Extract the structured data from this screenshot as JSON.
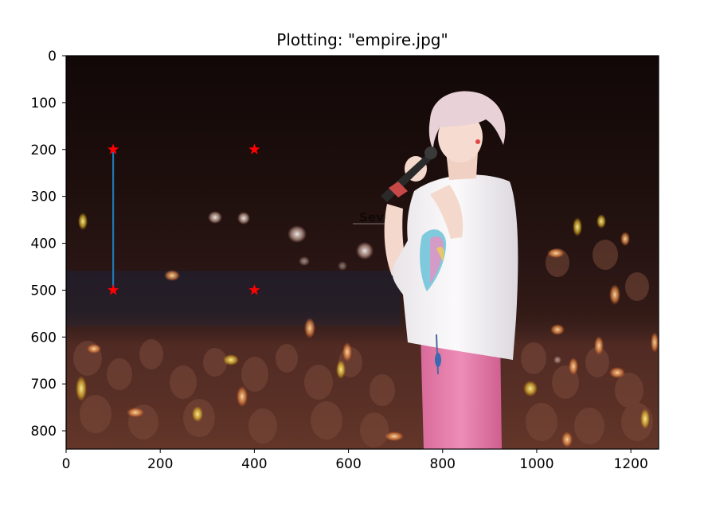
{
  "chart_data": {
    "type": "scatter",
    "title": "Plotting: \"empire.jpg\"",
    "xlabel": "",
    "ylabel": "",
    "xlim": [
      0,
      1259
    ],
    "ylim": [
      839,
      0
    ],
    "y_axis_inverted": true,
    "grid": false,
    "legend": "none",
    "background_image": {
      "description": "concert photo",
      "watermark_text": "Seven"
    },
    "x_ticks": [
      0,
      200,
      400,
      600,
      800,
      1000,
      1200
    ],
    "y_ticks": [
      0,
      100,
      200,
      300,
      400,
      500,
      600,
      700,
      800
    ],
    "series": [
      {
        "type": "scatter",
        "marker": "star",
        "color": "#ff0000",
        "points": [
          {
            "x": 100,
            "y": 200
          },
          {
            "x": 400,
            "y": 200
          },
          {
            "x": 100,
            "y": 500
          },
          {
            "x": 400,
            "y": 500
          }
        ]
      },
      {
        "type": "line",
        "color": "#1f77b4",
        "points": [
          {
            "x": 100,
            "y": 200
          },
          {
            "x": 100,
            "y": 500
          }
        ]
      }
    ]
  }
}
